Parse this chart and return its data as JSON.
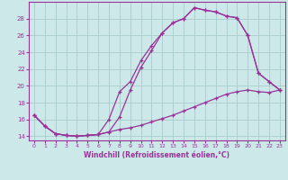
{
  "background_color": "#cce8e8",
  "grid_color": "#aacccc",
  "line_color": "#993399",
  "xlim": [
    -0.5,
    23.5
  ],
  "ylim": [
    13.5,
    30.0
  ],
  "yticks": [
    14,
    16,
    18,
    20,
    22,
    24,
    26,
    28
  ],
  "xticks": [
    0,
    1,
    2,
    3,
    4,
    5,
    6,
    7,
    8,
    9,
    10,
    11,
    12,
    13,
    14,
    15,
    16,
    17,
    18,
    19,
    20,
    21,
    22,
    23
  ],
  "xlabel": "Windchill (Refroidissement éolien,°C)",
  "line1_x": [
    0,
    1,
    2,
    3,
    4,
    5,
    6,
    7,
    8,
    9,
    10,
    11,
    12,
    13,
    14,
    15,
    16,
    17,
    18,
    19,
    20,
    21,
    22,
    23
  ],
  "line1_y": [
    16.5,
    15.2,
    14.3,
    14.1,
    14.0,
    14.1,
    14.2,
    14.5,
    16.3,
    19.5,
    22.2,
    24.2,
    26.3,
    27.5,
    28.0,
    29.3,
    29.0,
    28.8,
    28.3,
    28.1,
    26.0,
    21.5,
    20.5,
    19.5
  ],
  "line2_x": [
    0,
    1,
    2,
    3,
    4,
    5,
    6,
    7,
    8,
    9,
    10,
    11,
    12,
    13,
    14,
    15,
    16,
    17,
    18,
    19,
    20,
    21,
    22,
    23
  ],
  "line2_y": [
    16.5,
    15.2,
    14.3,
    14.1,
    14.0,
    14.1,
    14.2,
    16.0,
    19.3,
    20.5,
    23.0,
    24.8,
    26.3,
    27.5,
    28.0,
    29.3,
    29.0,
    28.8,
    28.3,
    28.1,
    26.0,
    21.5,
    20.5,
    19.5
  ],
  "line3_x": [
    0,
    1,
    2,
    3,
    4,
    5,
    6,
    7,
    8,
    9,
    10,
    11,
    12,
    13,
    14,
    15,
    16,
    17,
    18,
    19,
    20,
    21,
    22,
    23
  ],
  "line3_y": [
    16.5,
    15.2,
    14.3,
    14.1,
    14.0,
    14.1,
    14.2,
    14.5,
    14.8,
    15.0,
    15.3,
    15.7,
    16.1,
    16.5,
    17.0,
    17.5,
    18.0,
    18.5,
    19.0,
    19.3,
    19.5,
    19.3,
    19.2,
    19.5
  ]
}
